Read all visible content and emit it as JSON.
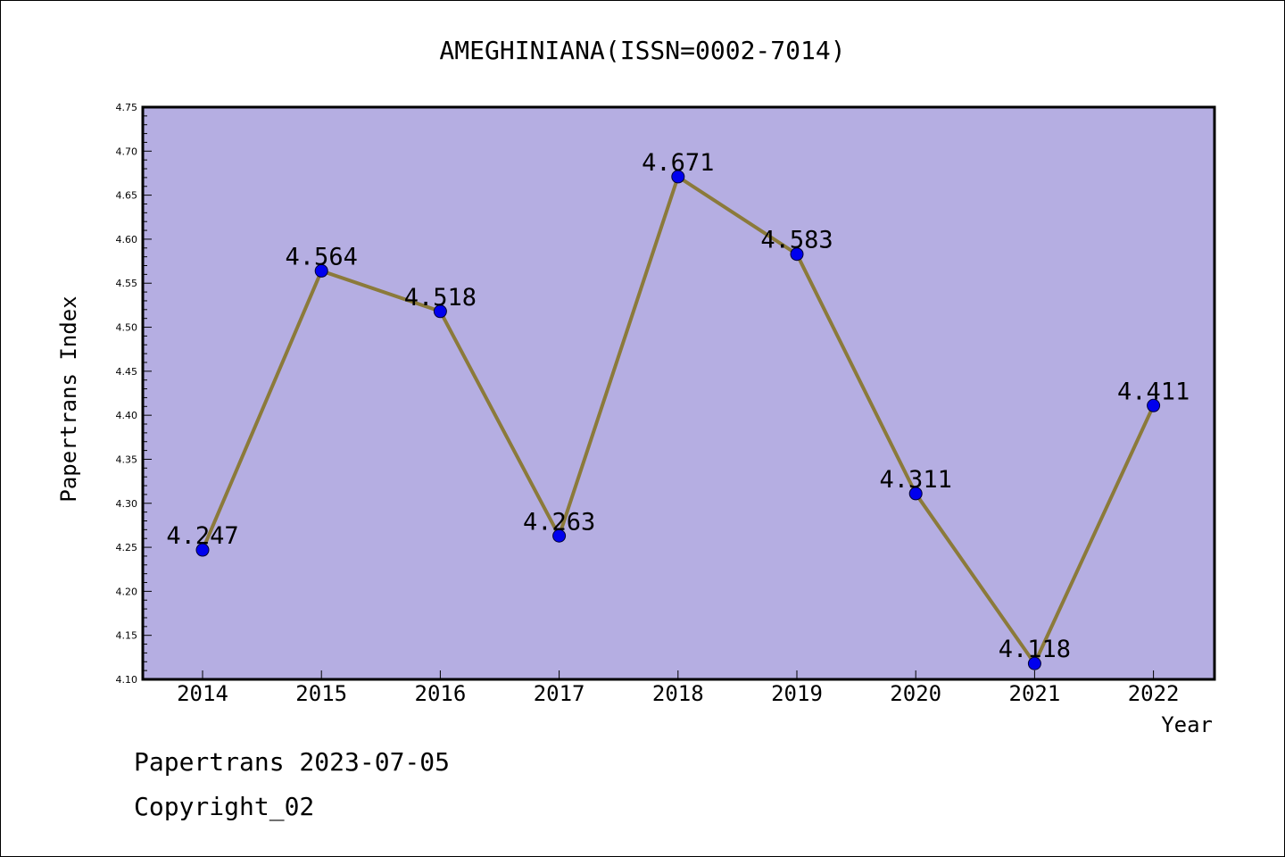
{
  "chart_data": {
    "type": "line",
    "title": "AMEGHINIANA(ISSN=0002-7014)",
    "xlabel": "Year",
    "ylabel": "Papertrans Index",
    "x": [
      "2014",
      "2015",
      "2016",
      "2017",
      "2018",
      "2019",
      "2020",
      "2021",
      "2022"
    ],
    "values": [
      4.247,
      4.564,
      4.518,
      4.263,
      4.671,
      4.583,
      4.311,
      4.118,
      4.411
    ],
    "data_labels": [
      "4.247",
      "4.564",
      "4.518",
      "4.263",
      "4.671",
      "4.583",
      "4.311",
      "4.118",
      "4.411"
    ],
    "ylim": [
      4.1,
      4.75
    ],
    "yticks": [
      "4.10",
      "4.15",
      "4.20",
      "4.25",
      "4.30",
      "4.35",
      "4.40",
      "4.45",
      "4.50",
      "4.55",
      "4.60",
      "4.65",
      "4.70",
      "4.75"
    ],
    "grid": false,
    "colors": {
      "plot_background": "#b5aee2",
      "line": "#8b7a3a",
      "marker": "#0000ee"
    }
  },
  "footer": {
    "line1": "Papertrans 2023-07-05",
    "line2": "Copyright_02"
  }
}
